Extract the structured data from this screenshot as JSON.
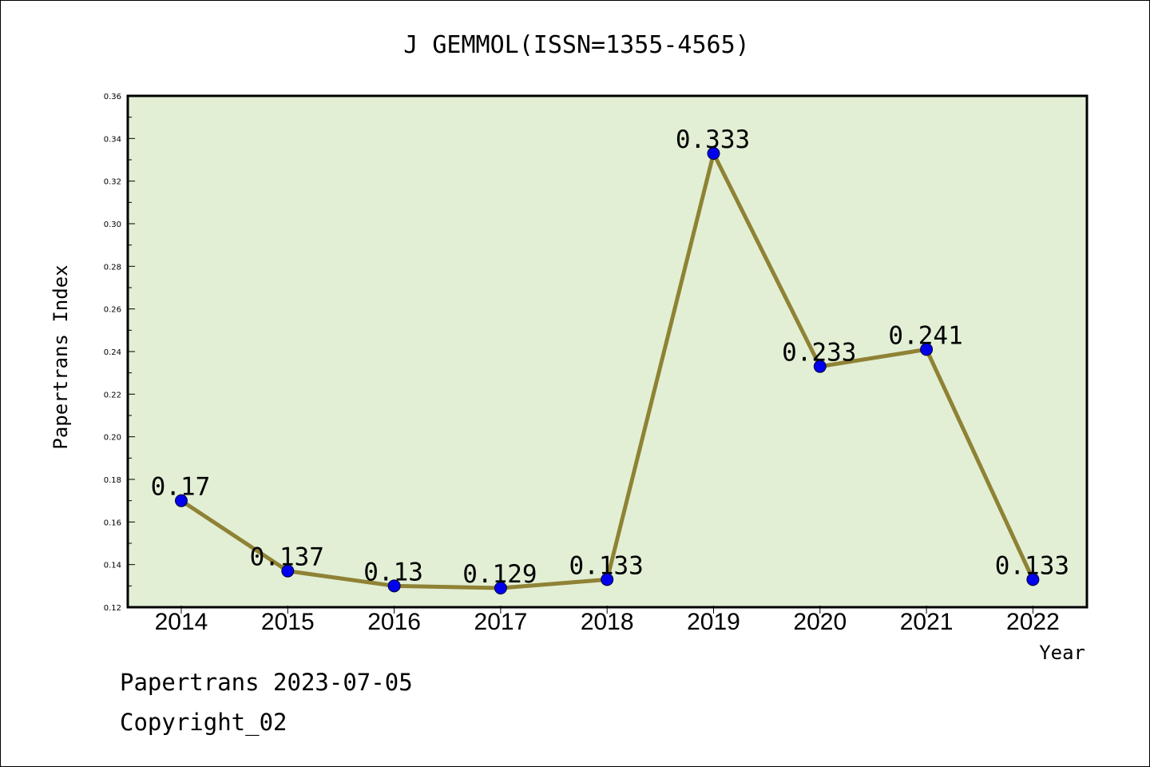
{
  "chart_data": {
    "type": "line",
    "title": "J GEMMOL(ISSN=1355-4565)",
    "xlabel": "Year",
    "ylabel": "Papertrans Index",
    "categories": [
      "2014",
      "2015",
      "2016",
      "2017",
      "2018",
      "2019",
      "2020",
      "2021",
      "2022"
    ],
    "values": [
      0.17,
      0.137,
      0.13,
      0.129,
      0.133,
      0.333,
      0.233,
      0.241,
      0.133
    ],
    "data_labels": [
      "0.17",
      "0.137",
      "0.13",
      "0.129",
      "0.133",
      "0.333",
      "0.233",
      "0.241",
      "0.133"
    ],
    "ylim": [
      0.12,
      0.36
    ],
    "yticks": [
      "0.12",
      "0.14",
      "0.16",
      "0.18",
      "0.20",
      "0.22",
      "0.24",
      "0.26",
      "0.28",
      "0.30",
      "0.32",
      "0.34",
      "0.36"
    ],
    "grid": false,
    "legend": "none",
    "colors": {
      "plot_background": "#e2efd5",
      "line": "#8f8235",
      "marker": "#0000ee"
    }
  },
  "footer": {
    "line1": "Papertrans 2023-07-05",
    "line2": "Copyright_02"
  }
}
